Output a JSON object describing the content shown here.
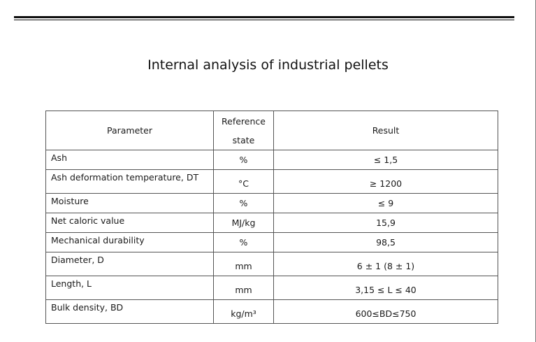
{
  "title": "Internal analysis of industrial pellets",
  "table": {
    "headers": {
      "parameter": "Parameter",
      "reference_line1": "Reference",
      "reference_line2": "state",
      "result": "Result"
    },
    "rows": [
      {
        "parameter": "Ash",
        "unit": "%",
        "result": "≤ 1,5"
      },
      {
        "parameter": "Ash deformation temperature, DT",
        "unit": "°C",
        "result": "≥ 1200"
      },
      {
        "parameter": "Moisture",
        "unit": "%",
        "result": "≤ 9"
      },
      {
        "parameter": "Net caloric value",
        "unit": "MJ/kg",
        "result": "15,9"
      },
      {
        "parameter": "Mechanical durability",
        "unit": "%",
        "result": "98,5"
      },
      {
        "parameter": "Diameter, D",
        "unit": "mm",
        "result": "6 ± 1 (8 ± 1)"
      },
      {
        "parameter": "Length, L",
        "unit": "mm",
        "result": "3,15 ≤ L ≤ 40"
      },
      {
        "parameter": "Bulk density, BD",
        "unit": "kg/m³",
        "result": "600≤BD≤750"
      }
    ]
  }
}
